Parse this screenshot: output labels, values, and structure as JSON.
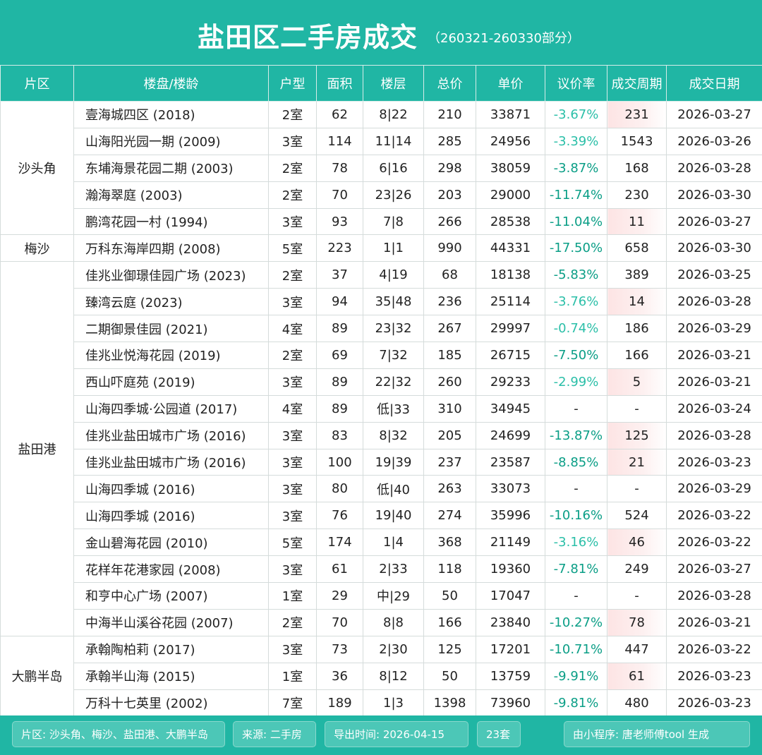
{
  "header": {
    "title": "盐田区二手房成交",
    "subtitle": "（260321-260330部分）"
  },
  "columns": [
    "片区",
    "楼盘/楼龄",
    "户型",
    "面积",
    "楼层",
    "总价",
    "单价",
    "议价率",
    "成交周期",
    "成交日期"
  ],
  "districts": [
    {
      "name": "沙头角",
      "rows": [
        {
          "name": "壹海城四区 (2018)",
          "type": "2室",
          "area": "62",
          "floor": "8|22",
          "total": "210",
          "unit": "33871",
          "disc": "-3.67%",
          "cycle": "231",
          "date": "2026-03-27",
          "hl": true,
          "dark": false
        },
        {
          "name": "山海阳光园一期 (2009)",
          "type": "3室",
          "area": "114",
          "floor": "11|14",
          "total": "285",
          "unit": "24956",
          "disc": "-3.39%",
          "cycle": "1543",
          "date": "2026-03-26",
          "hl": false,
          "dark": false
        },
        {
          "name": "东埔海景花园二期 (2003)",
          "type": "2室",
          "area": "78",
          "floor": "6|16",
          "total": "298",
          "unit": "38059",
          "disc": "-3.87%",
          "cycle": "168",
          "date": "2026-03-28",
          "hl": false,
          "dark": true
        },
        {
          "name": "瀚海翠庭 (2003)",
          "type": "2室",
          "area": "70",
          "floor": "23|26",
          "total": "203",
          "unit": "29000",
          "disc": "-11.74%",
          "cycle": "230",
          "date": "2026-03-30",
          "hl": false,
          "dark": true
        },
        {
          "name": "鹏湾花园一村 (1994)",
          "type": "3室",
          "area": "93",
          "floor": "7|8",
          "total": "266",
          "unit": "28538",
          "disc": "-11.04%",
          "cycle": "11",
          "date": "2026-03-27",
          "hl": true,
          "dark": true
        }
      ]
    },
    {
      "name": "梅沙",
      "rows": [
        {
          "name": "万科东海岸四期 (2008)",
          "type": "5室",
          "area": "223",
          "floor": "1|1",
          "total": "990",
          "unit": "44331",
          "disc": "-17.50%",
          "cycle": "658",
          "date": "2026-03-30",
          "hl": false,
          "dark": true
        }
      ]
    },
    {
      "name": "盐田港",
      "rows": [
        {
          "name": "佳兆业御璟佳园广场 (2023)",
          "type": "2室",
          "area": "37",
          "floor": "4|19",
          "total": "68",
          "unit": "18138",
          "disc": "-5.83%",
          "cycle": "389",
          "date": "2026-03-25",
          "hl": false,
          "dark": true
        },
        {
          "name": "臻湾云庭 (2023)",
          "type": "3室",
          "area": "94",
          "floor": "35|48",
          "total": "236",
          "unit": "25114",
          "disc": "-3.76%",
          "cycle": "14",
          "date": "2026-03-28",
          "hl": true,
          "dark": false
        },
        {
          "name": "二期御景佳园 (2021)",
          "type": "4室",
          "area": "89",
          "floor": "23|32",
          "total": "267",
          "unit": "29997",
          "disc": "-0.74%",
          "cycle": "186",
          "date": "2026-03-29",
          "hl": false,
          "dark": false
        },
        {
          "name": "佳兆业悦海花园 (2019)",
          "type": "2室",
          "area": "69",
          "floor": "7|32",
          "total": "185",
          "unit": "26715",
          "disc": "-7.50%",
          "cycle": "166",
          "date": "2026-03-21",
          "hl": false,
          "dark": true
        },
        {
          "name": "西山吓庭苑 (2019)",
          "type": "3室",
          "area": "89",
          "floor": "22|32",
          "total": "260",
          "unit": "29233",
          "disc": "-2.99%",
          "cycle": "5",
          "date": "2026-03-21",
          "hl": true,
          "dark": false
        },
        {
          "name": "山海四季城·公园道 (2017)",
          "type": "4室",
          "area": "89",
          "floor": "低|33",
          "total": "310",
          "unit": "34945",
          "disc": "-",
          "cycle": "-",
          "date": "2026-03-24",
          "hl": false,
          "dark": false,
          "plain": true
        },
        {
          "name": "佳兆业盐田城市广场 (2016)",
          "type": "3室",
          "area": "83",
          "floor": "8|32",
          "total": "205",
          "unit": "24699",
          "disc": "-13.87%",
          "cycle": "125",
          "date": "2026-03-28",
          "hl": true,
          "dark": true
        },
        {
          "name": "佳兆业盐田城市广场 (2016)",
          "type": "3室",
          "area": "100",
          "floor": "19|39",
          "total": "237",
          "unit": "23587",
          "disc": "-8.85%",
          "cycle": "21",
          "date": "2026-03-23",
          "hl": true,
          "dark": true
        },
        {
          "name": "山海四季城 (2016)",
          "type": "3室",
          "area": "80",
          "floor": "低|40",
          "total": "263",
          "unit": "33073",
          "disc": "-",
          "cycle": "-",
          "date": "2026-03-29",
          "hl": false,
          "dark": false,
          "plain": true
        },
        {
          "name": "山海四季城 (2016)",
          "type": "3室",
          "area": "76",
          "floor": "19|40",
          "total": "274",
          "unit": "35996",
          "disc": "-10.16%",
          "cycle": "524",
          "date": "2026-03-22",
          "hl": false,
          "dark": true
        },
        {
          "name": "金山碧海花园 (2010)",
          "type": "5室",
          "area": "174",
          "floor": "1|4",
          "total": "368",
          "unit": "21149",
          "disc": "-3.16%",
          "cycle": "46",
          "date": "2026-03-22",
          "hl": true,
          "dark": false
        },
        {
          "name": "花样年花港家园 (2008)",
          "type": "3室",
          "area": "61",
          "floor": "2|33",
          "total": "118",
          "unit": "19360",
          "disc": "-7.81%",
          "cycle": "249",
          "date": "2026-03-27",
          "hl": false,
          "dark": true
        },
        {
          "name": "和亨中心广场 (2007)",
          "type": "1室",
          "area": "29",
          "floor": "中|29",
          "total": "50",
          "unit": "17047",
          "disc": "-",
          "cycle": "-",
          "date": "2026-03-28",
          "hl": false,
          "dark": false,
          "plain": true
        },
        {
          "name": "中海半山溪谷花园 (2007)",
          "type": "2室",
          "area": "70",
          "floor": "8|8",
          "total": "166",
          "unit": "23840",
          "disc": "-10.27%",
          "cycle": "78",
          "date": "2026-03-21",
          "hl": true,
          "dark": true
        }
      ]
    },
    {
      "name": "大鹏半岛",
      "rows": [
        {
          "name": "承翰陶柏莉 (2017)",
          "type": "3室",
          "area": "73",
          "floor": "2|30",
          "total": "125",
          "unit": "17201",
          "disc": "-10.71%",
          "cycle": "447",
          "date": "2026-03-22",
          "hl": false,
          "dark": true
        },
        {
          "name": "承翰半山海 (2015)",
          "type": "1室",
          "area": "36",
          "floor": "8|12",
          "total": "50",
          "unit": "13759",
          "disc": "-9.91%",
          "cycle": "61",
          "date": "2026-03-23",
          "hl": true,
          "dark": true
        },
        {
          "name": "万科十七英里 (2002)",
          "type": "7室",
          "area": "189",
          "floor": "1|3",
          "total": "1398",
          "unit": "73960",
          "disc": "-9.81%",
          "cycle": "480",
          "date": "2026-03-23",
          "hl": false,
          "dark": true
        }
      ]
    }
  ],
  "footer": {
    "areas": "片区: 沙头角、梅沙、盐田港、大鹏半岛",
    "source": "来源: 二手房",
    "export_time": "导出时间: 2026-04-15",
    "count": "23套",
    "generator": "由小程序: 唐老师傅tool 生成"
  }
}
